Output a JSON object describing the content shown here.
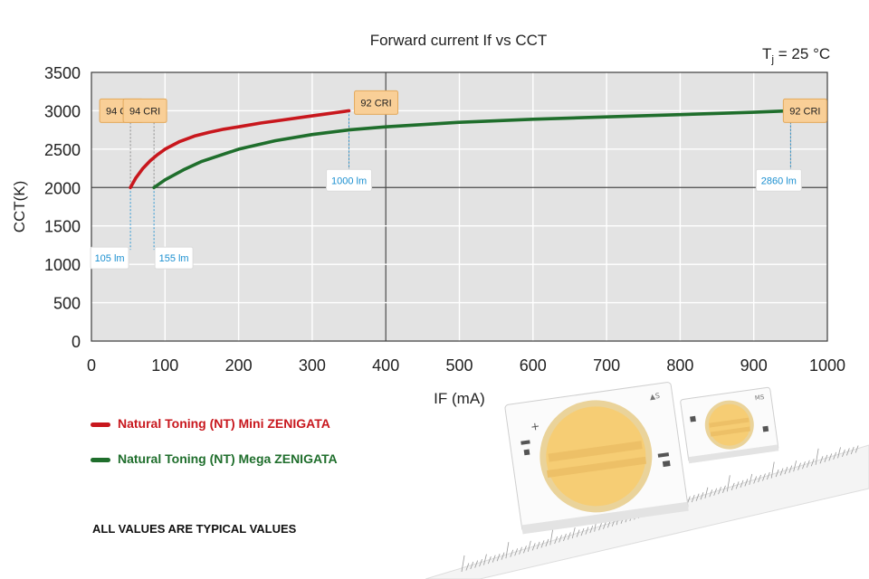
{
  "chart_data": {
    "type": "line",
    "title": "Forward current If vs CCT",
    "condition": {
      "prefix": "T",
      "sub": "j",
      "suffix": " = 25 °C"
    },
    "xlabel": "IF (mA)",
    "ylabel": "CCT(K)",
    "xlim": [
      0,
      1000
    ],
    "ylim": [
      0,
      3500
    ],
    "xticks": [
      0,
      100,
      200,
      300,
      400,
      500,
      600,
      700,
      800,
      900,
      1000
    ],
    "yticks": [
      0,
      500,
      1000,
      1500,
      2000,
      2500,
      3000,
      3500
    ],
    "grid": true,
    "series": [
      {
        "name": "Natural Toning (NT) Mini ZENIGATA",
        "color": "#c8171d",
        "x": [
          53,
          60,
          70,
          80,
          90,
          100,
          120,
          140,
          160,
          180,
          200,
          230,
          260,
          290,
          320,
          350
        ],
        "y": [
          2000,
          2120,
          2250,
          2350,
          2430,
          2500,
          2600,
          2670,
          2720,
          2760,
          2790,
          2840,
          2880,
          2920,
          2960,
          3000
        ]
      },
      {
        "name": "Natural Toning (NT) Mega ZENIGATA",
        "color": "#1f6e2c",
        "x": [
          85,
          100,
          125,
          150,
          200,
          250,
          300,
          350,
          400,
          500,
          600,
          700,
          800,
          900,
          950
        ],
        "y": [
          2000,
          2100,
          2230,
          2340,
          2500,
          2610,
          2690,
          2750,
          2790,
          2850,
          2890,
          2920,
          2950,
          2980,
          3000
        ]
      }
    ],
    "annotations": [
      {
        "text": "94 CRI",
        "type": "cri",
        "x": 53,
        "y": 3000
      },
      {
        "text": "94 CRI",
        "type": "cri",
        "x": 85,
        "y": 3000
      },
      {
        "text": "92 CRI",
        "type": "cri",
        "x": 350,
        "y": 3000
      },
      {
        "text": "92 CRI",
        "type": "cri",
        "x": 950,
        "y": 3000
      },
      {
        "text": "105 lm",
        "type": "lm",
        "x": 53,
        "y": 2000
      },
      {
        "text": "155 lm",
        "type": "lm",
        "x": 85,
        "y": 2000
      },
      {
        "text": "1000 lm",
        "type": "lm",
        "x": 350,
        "y": 3000
      },
      {
        "text": "2860 lm",
        "type": "lm",
        "x": 950,
        "y": 3000
      }
    ]
  },
  "legend": {
    "mini": "Natural Toning (NT) Mini ZENIGATA",
    "mega": "Natural Toning (NT) Mega ZENIGATA"
  },
  "footnote": "ALL VALUES ARE TYPICAL VALUES",
  "colors": {
    "plot_bg": "#e3e3e3",
    "cri_box": "#f9cf97",
    "lm_text": "#1a8fd0",
    "mini": "#c8171d",
    "mega": "#1f6e2c"
  }
}
